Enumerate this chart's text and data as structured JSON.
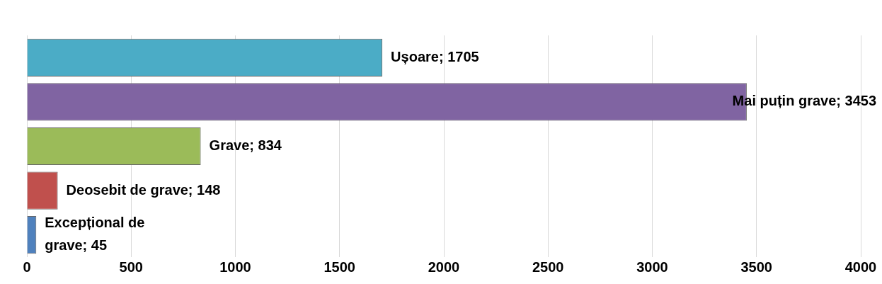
{
  "chart_data": {
    "type": "bar",
    "orientation": "horizontal",
    "categories": [
      null,
      null,
      null,
      null,
      null
    ],
    "value_labels": [
      "Ușoare; 1705",
      "Mai puțin grave; 3453",
      "Grave; 834",
      "Deosebit de grave; 148",
      "Excepțional de grave; 45"
    ],
    "values": [
      1705,
      3453,
      834,
      148,
      45
    ],
    "colors": [
      "#4bacc6",
      "#8064a2",
      "#9bbb59",
      "#c0504d",
      "#4f81bd"
    ],
    "xlim": [
      0,
      4000
    ],
    "xticks": [
      0,
      500,
      1000,
      1500,
      2000,
      2500,
      3000,
      3500,
      4000
    ],
    "grid": "x",
    "tick_labels": "x"
  }
}
